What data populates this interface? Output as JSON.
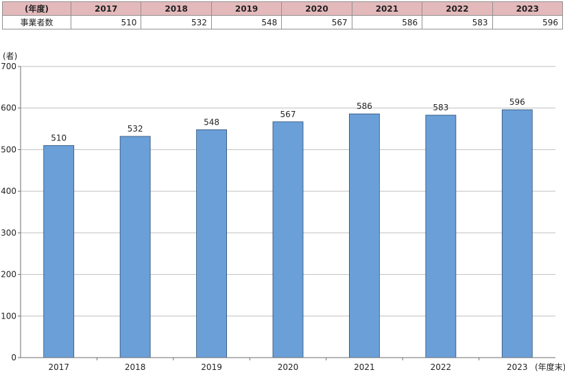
{
  "table": {
    "header_label": "(年度)",
    "years": [
      "2017",
      "2018",
      "2019",
      "2020",
      "2021",
      "2022",
      "2023"
    ],
    "row_label": "事業者数",
    "values": [
      "510",
      "532",
      "548",
      "567",
      "586",
      "583",
      "596"
    ]
  },
  "chart_data": {
    "type": "bar",
    "categories": [
      "2017",
      "2018",
      "2019",
      "2020",
      "2021",
      "2022",
      "2023"
    ],
    "series": [
      {
        "values": [
          510,
          532,
          548,
          567,
          586,
          583,
          596
        ]
      }
    ],
    "ylim": [
      0,
      700
    ],
    "yticks": [
      0,
      100,
      200,
      300,
      400,
      500,
      600,
      700
    ],
    "ylabel": "(者)",
    "xlabel": "(年度末)",
    "grid": true,
    "bar_color": "#6a9fd8",
    "bar_edge_color": "#2f4f72",
    "grid_color": "#bfbfbf"
  }
}
